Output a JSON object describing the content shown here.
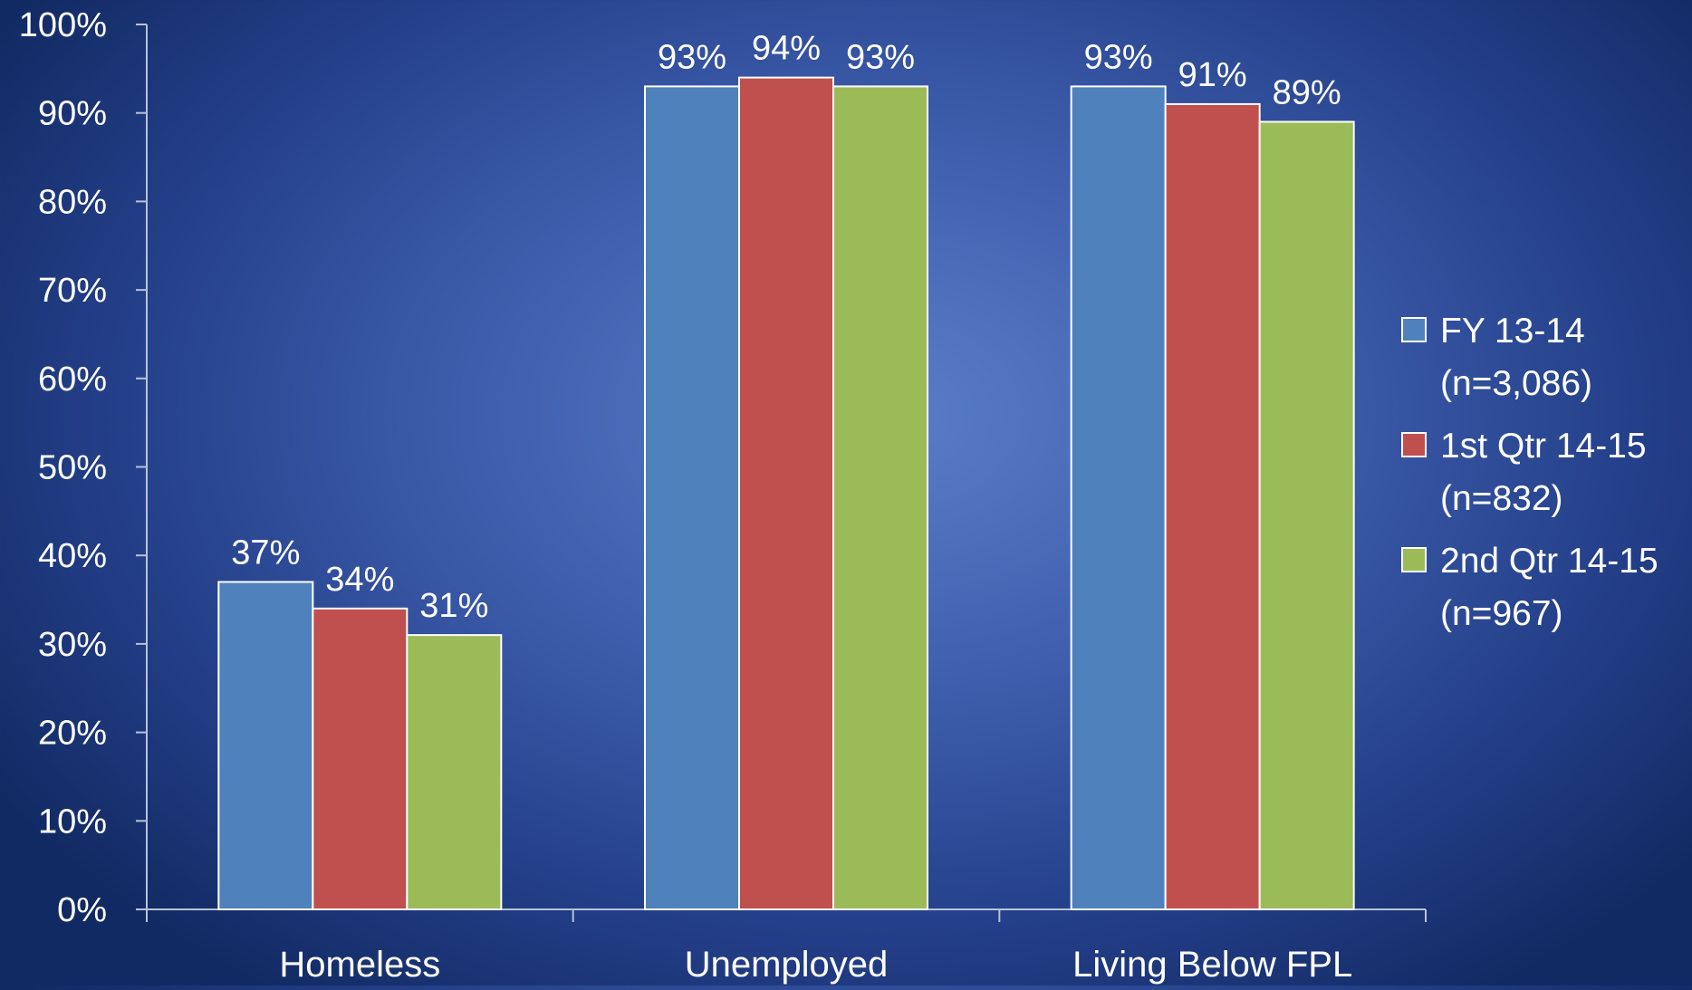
{
  "chart_data": {
    "type": "bar",
    "categories": [
      "Homeless",
      "Unemployed",
      "Living Below FPL"
    ],
    "series": [
      {
        "name": "FY 13-14 (n=3,086)",
        "legend_lines": [
          "FY 13-14",
          "(n=3,086)"
        ],
        "values": [
          37,
          93,
          93
        ],
        "labels": [
          "37%",
          "93%",
          "93%"
        ],
        "color": "#4f81bd"
      },
      {
        "name": "1st Qtr 14-15 (n=832)",
        "legend_lines": [
          "1st Qtr 14-15",
          "(n=832)"
        ],
        "values": [
          34,
          94,
          91
        ],
        "labels": [
          "34%",
          "94%",
          "91%"
        ],
        "color": "#c0504d"
      },
      {
        "name": "2nd Qtr 14-15 (n=967)",
        "legend_lines": [
          "2nd Qtr 14-15",
          "(n=967)"
        ],
        "values": [
          31,
          93,
          89
        ],
        "labels": [
          "31%",
          "93%",
          "89%"
        ],
        "color": "#9bbb59"
      }
    ],
    "ylim": [
      0,
      100
    ],
    "yticks": [
      "0%",
      "10%",
      "20%",
      "30%",
      "40%",
      "50%",
      "60%",
      "70%",
      "80%",
      "90%",
      "100%"
    ],
    "title": "",
    "xlabel": "",
    "ylabel": "",
    "grid": false,
    "legend": "right"
  }
}
